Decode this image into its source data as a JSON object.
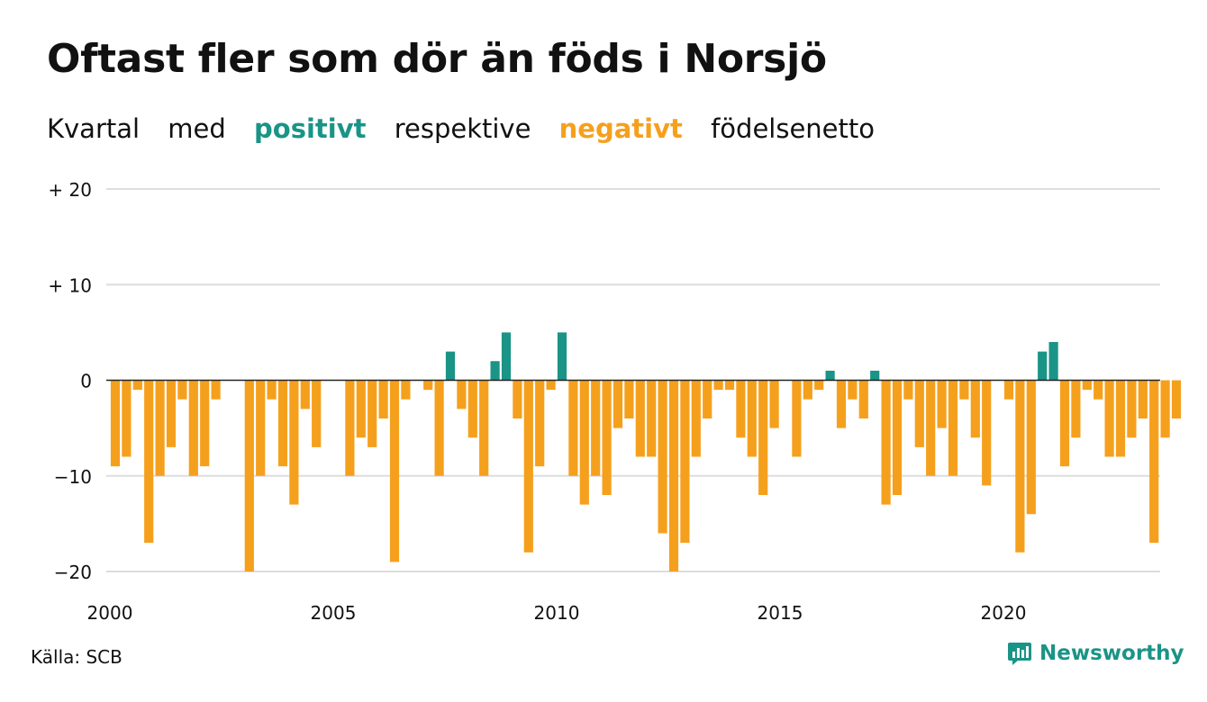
{
  "title": "Oftast fler som dör än föds i Norsjö",
  "subtitle": {
    "part1": "Kvartal",
    "part2": "med",
    "positive_word": "positivt",
    "part3": "respektive",
    "negative_word": "negativt",
    "part4": "födelsenetto"
  },
  "colors": {
    "positive": "#1a9486",
    "negative": "#f5a01d",
    "grid": "#dddddd",
    "text": "#111111"
  },
  "source": "Källa: SCB",
  "brand": {
    "name": "Newsworthy",
    "icon": "bar-chart-speech-bubble-icon"
  },
  "chart_data": {
    "type": "bar",
    "xlabel": "",
    "ylabel": "",
    "ylim": [
      -20,
      20
    ],
    "y_ticks": [
      {
        "value": 20,
        "label": "+ 20"
      },
      {
        "value": 10,
        "label": "+ 10"
      },
      {
        "value": 0,
        "label": "0"
      },
      {
        "value": -10,
        "label": "−10"
      },
      {
        "value": -20,
        "label": "−20"
      }
    ],
    "x_ticks": [
      {
        "year": 2000,
        "label": "2000"
      },
      {
        "year": 2005,
        "label": "2005"
      },
      {
        "year": 2010,
        "label": "2010"
      },
      {
        "year": 2015,
        "label": "2015"
      },
      {
        "year": 2020,
        "label": "2020"
      }
    ],
    "x_start_year": 2000,
    "x_end_year": 2023.75,
    "grid": true,
    "categories": [
      "2000K1",
      "2000K2",
      "2000K3",
      "2000K4",
      "2001K1",
      "2001K2",
      "2001K3",
      "2001K4",
      "2002K1",
      "2002K2",
      "2002K3",
      "2002K4",
      "2003K1",
      "2003K2",
      "2003K3",
      "2003K4",
      "2004K1",
      "2004K2",
      "2004K3",
      "2004K4",
      "2005K1",
      "2005K2",
      "2005K3",
      "2005K4",
      "2006K1",
      "2006K2",
      "2006K3",
      "2006K4",
      "2007K1",
      "2007K2",
      "2007K3",
      "2007K4",
      "2008K1",
      "2008K2",
      "2008K3",
      "2008K4",
      "2009K1",
      "2009K2",
      "2009K3",
      "2009K4",
      "2010K1",
      "2010K2",
      "2010K3",
      "2010K4",
      "2011K1",
      "2011K2",
      "2011K3",
      "2011K4",
      "2012K1",
      "2012K2",
      "2012K3",
      "2012K4",
      "2013K1",
      "2013K2",
      "2013K3",
      "2013K4",
      "2014K1",
      "2014K2",
      "2014K3",
      "2014K4",
      "2015K1",
      "2015K2",
      "2015K3",
      "2015K4",
      "2016K1",
      "2016K2",
      "2016K3",
      "2016K4",
      "2017K1",
      "2017K2",
      "2017K3",
      "2017K4",
      "2018K1",
      "2018K2",
      "2018K3",
      "2018K4",
      "2019K1",
      "2019K2",
      "2019K3",
      "2019K4",
      "2020K1",
      "2020K2",
      "2020K3",
      "2020K4",
      "2021K1",
      "2021K2",
      "2021K3",
      "2021K4",
      "2022K1",
      "2022K2",
      "2022K3",
      "2022K4",
      "2023K1",
      "2023K2",
      "2023K3",
      "2023K4"
    ],
    "values": [
      -9,
      -8,
      -1,
      -17,
      -10,
      -7,
      -2,
      -10,
      -9,
      -2,
      0,
      0,
      -20,
      -10,
      -2,
      -9,
      -13,
      -3,
      -7,
      0,
      0,
      -10,
      -6,
      -7,
      -4,
      -19,
      -2,
      0,
      -1,
      -10,
      3,
      -3,
      -6,
      -10,
      2,
      5,
      -4,
      -18,
      -9,
      -1,
      5,
      -10,
      -13,
      -10,
      -12,
      -5,
      -4,
      -8,
      -8,
      -16,
      -20,
      -17,
      -8,
      -4,
      -1,
      -1,
      -6,
      -8,
      -12,
      -5,
      0,
      -8,
      -2,
      -1,
      1,
      -5,
      -2,
      -4,
      1,
      -13,
      -12,
      -2,
      -7,
      -10,
      -5,
      -10,
      -2,
      -6,
      -11,
      0,
      -2,
      -18,
      -14,
      3,
      4,
      -9,
      -6,
      -1,
      -2,
      -8,
      -8,
      -6,
      -4,
      -17,
      -6,
      -4
    ]
  }
}
